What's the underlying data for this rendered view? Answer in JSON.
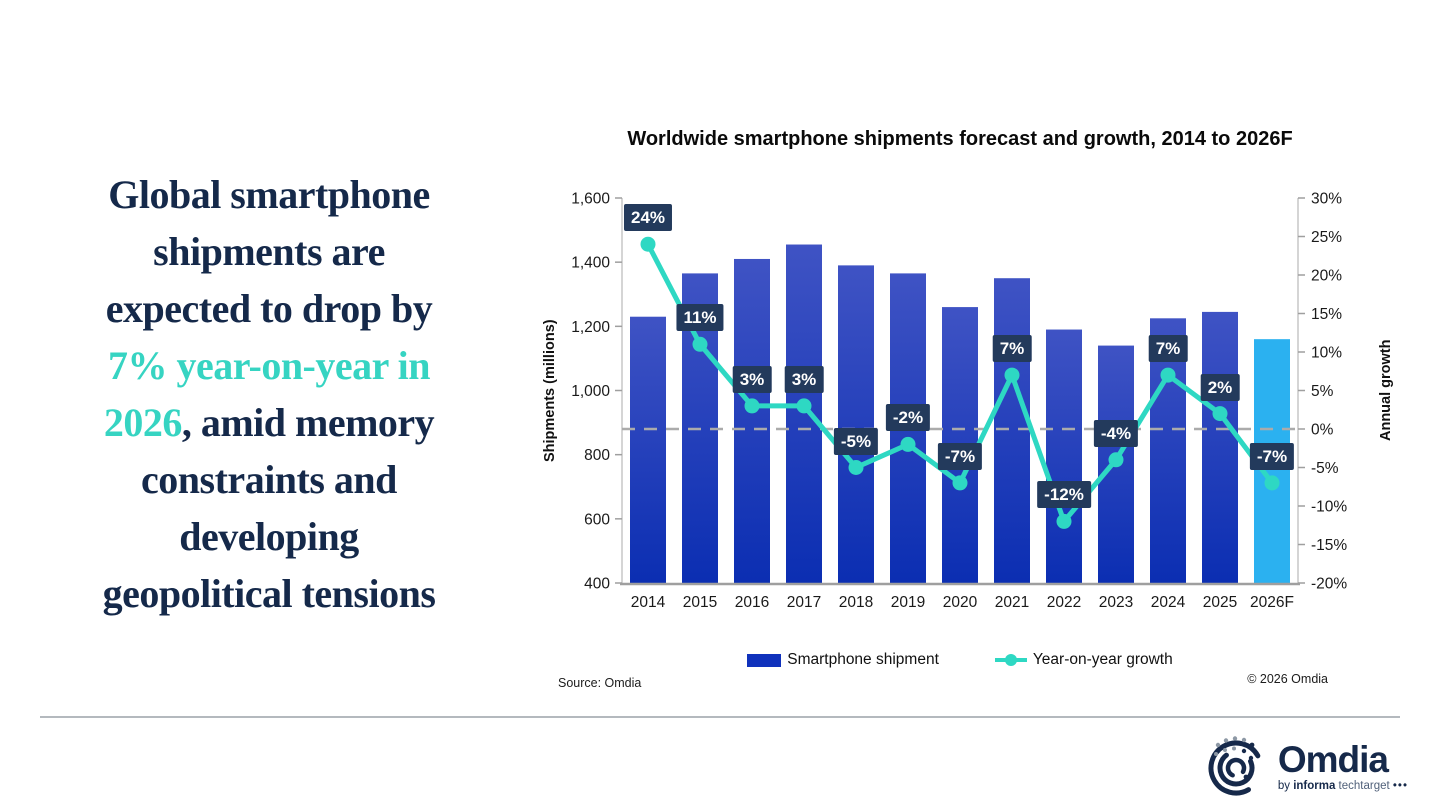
{
  "headline": {
    "lines": [
      [
        {
          "text": "Global smartphone",
          "color": "#15294a"
        }
      ],
      [
        {
          "text": "shipments are",
          "color": "#15294a"
        }
      ],
      [
        {
          "text": "expected to drop by",
          "color": "#15294a"
        }
      ],
      [
        {
          "text": "7% year-on-year in",
          "color": "#36d4c2"
        }
      ],
      [
        {
          "text": "2026",
          "color": "#36d4c2"
        },
        {
          "text": ", amid memory",
          "color": "#15294a"
        }
      ],
      [
        {
          "text": "constraints and",
          "color": "#15294a"
        }
      ],
      [
        {
          "text": "developing",
          "color": "#15294a"
        }
      ],
      [
        {
          "text": "geopolitical tensions",
          "color": "#15294a"
        }
      ]
    ]
  },
  "chart_data": {
    "type": "bar+line",
    "title": "Worldwide smartphone shipments forecast and growth, 2014 to 2026F",
    "categories": [
      "2014",
      "2015",
      "2016",
      "2017",
      "2018",
      "2019",
      "2020",
      "2021",
      "2022",
      "2023",
      "2024",
      "2025",
      "2026F"
    ],
    "series": [
      {
        "name": "Smartphone shipment",
        "type": "bar",
        "values": [
          1230,
          1365,
          1410,
          1455,
          1390,
          1365,
          1260,
          1350,
          1190,
          1140,
          1225,
          1245,
          1160
        ]
      },
      {
        "name": "Year-on-year growth",
        "type": "line",
        "values": [
          24,
          11,
          3,
          3,
          -5,
          -2,
          -7,
          7,
          -12,
          -4,
          7,
          2,
          -7
        ],
        "labels": [
          "24%",
          "11%",
          "3%",
          "3%",
          "-5%",
          "-2%",
          "-7%",
          "7%",
          "-12%",
          "-4%",
          "7%",
          "2%",
          "-7%"
        ]
      }
    ],
    "y_left": {
      "label": "Shipments (millions)",
      "min": 400,
      "max": 1600,
      "step": 200
    },
    "y_right": {
      "label": "Annual growth",
      "min": -20,
      "max": 30,
      "step": 5,
      "suffix": "%"
    },
    "zero_line": true,
    "grid": false,
    "legend_position": "bottom",
    "forecast_index": 12,
    "colors": {
      "bar_top": "#3f53c4",
      "bar_bottom": "#0b2eb2",
      "forecast_bar": "#2bb1f0",
      "line": "#2ed8c3",
      "label_bg": "#233a5c",
      "label_text": "#ffffff",
      "zero_dash": "#ababab",
      "axis_line": "#9f9f9f",
      "tick_text": "#1a1a1a"
    }
  },
  "legend": [
    {
      "label": "Smartphone shipment",
      "swatch": "bar-swatch"
    },
    {
      "label": "Year-on-year growth",
      "swatch": "line-swatch"
    }
  ],
  "source_note": "Source: Omdia",
  "copyright": "© 2026 Omdia",
  "logo": {
    "name": "Omdia",
    "sub_prefix": "by ",
    "sub_bold": "informa",
    "sub_light": " techtarget ",
    "sub_dots": "•••"
  }
}
